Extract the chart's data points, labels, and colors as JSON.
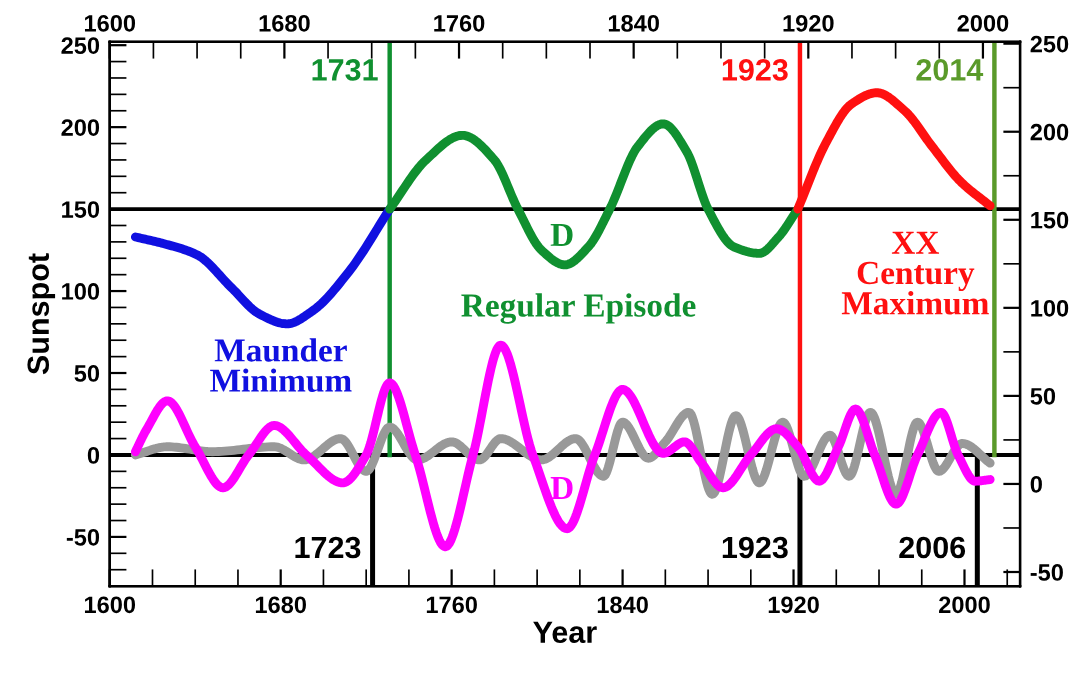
{
  "chart_data": {
    "type": "line",
    "xlabel": "Year",
    "ylabel": "Sunspot",
    "xlim": [
      1600,
      2026
    ],
    "xticks": [
      1600,
      1680,
      1760,
      1840,
      1920,
      2000
    ],
    "x2lim": [
      1600,
      2017
    ],
    "x2ticks": [
      1600,
      1680,
      1760,
      1840,
      1920,
      2000
    ],
    "ylim": [
      -80,
      252
    ],
    "yticks": [
      -50,
      0,
      50,
      100,
      150,
      200,
      250
    ],
    "y2lim": [
      -58,
      251
    ],
    "y2ticks": [
      -50,
      0,
      50,
      100,
      150,
      200,
      250
    ],
    "grid": false,
    "legend": false,
    "marker": "none",
    "line_style": "solid",
    "series": [
      {
        "color": "#1010e0",
        "x": [
          1612,
          1625,
          1641,
          1657,
          1670,
          1683,
          1695,
          1712,
          1731
        ],
        "values": [
          133,
          129,
          122,
          102,
          86,
          80,
          88,
          112,
          150
        ]
      },
      {
        "color": "#109030",
        "x": [
          1731,
          1748,
          1765,
          1780,
          1791,
          1802,
          1813,
          1824,
          1834,
          1847,
          1859,
          1870,
          1880,
          1892,
          1904,
          1913,
          1922
        ],
        "values": [
          150,
          180,
          195,
          180,
          150,
          125,
          116,
          127,
          150,
          188,
          202,
          185,
          150,
          127,
          123,
          133,
          150
        ]
      },
      {
        "color": "#ff1010",
        "x": [
          1922,
          1935,
          1947,
          1959,
          1972,
          1985,
          1998,
          2012
        ],
        "values": [
          150,
          190,
          214,
          221,
          210,
          188,
          167,
          152
        ]
      },
      {
        "color": "#999999",
        "x": [
          1612,
          1627,
          1648,
          1677,
          1691,
          1708,
          1720,
          1731,
          1744,
          1760,
          1773,
          1783,
          1802,
          1818,
          1831,
          1840,
          1852,
          1860,
          1871,
          1882,
          1893,
          1904,
          1915,
          1925,
          1937,
          1946,
          1956,
          1968,
          1978,
          1988,
          1999,
          2012
        ],
        "values": [
          0,
          5,
          2,
          5,
          -3,
          10,
          -10,
          17,
          -3,
          8,
          -3,
          10,
          -3,
          10,
          -13,
          20,
          -2,
          8,
          26,
          -24,
          24,
          -17,
          20,
          -13,
          12,
          -13,
          26,
          -24,
          20,
          -10,
          7,
          -5
        ]
      },
      {
        "color": "#ff00ff",
        "x": [
          1612,
          1617,
          1627,
          1640,
          1653,
          1665,
          1677,
          1692,
          1709,
          1720,
          1731,
          1743,
          1757,
          1770,
          1783,
          1798,
          1814,
          1827,
          1840,
          1859,
          1869,
          1877,
          1887,
          1900,
          1912,
          1922,
          1932,
          1941,
          1949,
          1958,
          1968,
          1978,
          1989,
          1997,
          2005,
          2012
        ],
        "values": [
          2,
          15,
          33,
          5,
          -20,
          0,
          18,
          0,
          -17,
          0,
          44,
          0,
          -56,
          0,
          67,
          0,
          -45,
          0,
          40,
          1,
          8,
          -5,
          -20,
          0,
          16,
          5,
          -16,
          5,
          28,
          0,
          -30,
          0,
          26,
          0,
          -16,
          -15
        ]
      }
    ],
    "ref_lines": [
      {
        "axis": "y",
        "value": 150,
        "label": null,
        "color": "#000000"
      },
      {
        "axis": "y",
        "value": 0,
        "label": null,
        "color": "#000000"
      },
      {
        "axis": "x",
        "value": 1731,
        "label": "1731",
        "color": "#109030"
      },
      {
        "axis": "x",
        "value": 1923,
        "label": "1923",
        "color": "#ff1010"
      },
      {
        "axis": "x",
        "value": 2014,
        "label": "2014",
        "color": "#5a9a2a"
      },
      {
        "axis": "x",
        "value": 1723,
        "label": "1723",
        "color": "#000000"
      },
      {
        "axis": "x",
        "value": 1923,
        "label": "1923",
        "color": "#000000"
      },
      {
        "axis": "x",
        "value": 2006,
        "label": "2006",
        "color": "#000000"
      }
    ],
    "annotations": [
      "Maunder\nMinimum",
      "Regular Episode",
      "XX\nCentury\nMaximum",
      "D",
      "D"
    ]
  }
}
